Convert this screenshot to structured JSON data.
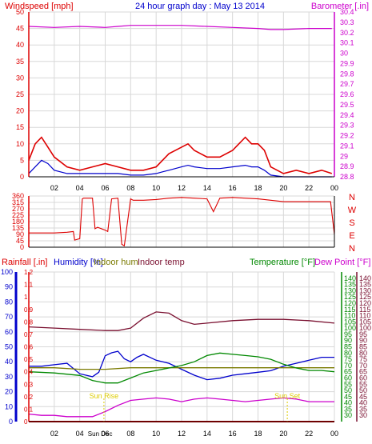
{
  "colors": {
    "red": "#dd0000",
    "blue": "#0000cc",
    "magenta": "#cc00cc",
    "green": "#008800",
    "maroon": "#7a1030",
    "olive": "#7a7a00",
    "gold": "#ddcc00",
    "grid": "#d8d8d8"
  },
  "chart_data": [
    {
      "type": "line",
      "title": "24 hour graph day : May 13 2014",
      "ylabel_left": "Windspeed [mph]",
      "ylabel_right": "Barometer [.in]",
      "x_ticks": [
        "02",
        "04",
        "06",
        "08",
        "10",
        "12",
        "14",
        "16",
        "18",
        "20",
        "22",
        "00"
      ],
      "x_range_hours": [
        0,
        24
      ],
      "y_left": {
        "min": 0,
        "max": 50,
        "ticks": [
          0,
          5,
          10,
          15,
          20,
          25,
          30,
          35,
          40,
          45,
          50
        ]
      },
      "y_right": {
        "min": 28.8,
        "max": 30.4,
        "ticks": [
          28.8,
          28.9,
          29.0,
          29.1,
          29.2,
          29.3,
          29.4,
          29.5,
          29.6,
          29.7,
          29.8,
          29.9,
          30.0,
          30.1,
          30.2,
          30.3,
          30.4
        ],
        "tick_labels": [
          "28.8",
          "28.9",
          "29",
          "29.1",
          "29.2",
          "29.3",
          "29.4",
          "29.5",
          "29.6",
          "29.7",
          "29.8",
          "29.9",
          "30",
          "30.1",
          "30.2",
          "30.3",
          "30.4"
        ]
      },
      "series": [
        {
          "name": "Barometer",
          "axis": "right",
          "color": "#cc00cc",
          "x": [
            0,
            2,
            4,
            6,
            7,
            8,
            10,
            12,
            14,
            16,
            18,
            19,
            20,
            22,
            23.8
          ],
          "y": [
            30.26,
            30.25,
            30.26,
            30.25,
            30.26,
            30.27,
            30.27,
            30.27,
            30.26,
            30.25,
            30.24,
            30.23,
            30.23,
            30.24,
            30.24
          ]
        },
        {
          "name": "Windspeed gust",
          "axis": "left",
          "color": "#dd0000",
          "x": [
            0,
            0.5,
            1,
            1.5,
            2,
            3,
            4,
            5,
            6,
            7,
            8,
            9,
            10,
            10.5,
            11,
            12,
            12.5,
            13,
            13.5,
            14,
            15,
            16,
            16.5,
            17,
            17.5,
            18,
            18.5,
            19,
            20,
            21,
            22,
            23,
            23.8
          ],
          "y": [
            5,
            10,
            12,
            9,
            6,
            3,
            2,
            3,
            4,
            3,
            2,
            2,
            3,
            5,
            7,
            9,
            10,
            8,
            7,
            6,
            6,
            8,
            10,
            12,
            10,
            10,
            8,
            3,
            1,
            2,
            1,
            2,
            1
          ]
        },
        {
          "name": "Windspeed",
          "axis": "left",
          "color": "#0000cc",
          "x": [
            0,
            0.5,
            1,
            1.5,
            2,
            3,
            4,
            5,
            6,
            7,
            8,
            9,
            10,
            10.5,
            11,
            12,
            12.5,
            13,
            14,
            15,
            16,
            17,
            17.5,
            18,
            18.5,
            19,
            20,
            22,
            23.8
          ],
          "y": [
            1,
            3,
            5,
            4,
            2,
            1,
            1,
            1,
            1,
            1,
            0.5,
            0.5,
            1,
            1.5,
            2,
            3,
            3.5,
            3,
            2.5,
            2.5,
            3,
            3.5,
            3,
            3,
            2,
            0.5,
            0,
            0,
            0
          ]
        }
      ]
    },
    {
      "type": "line",
      "ylabel_left": "",
      "y_left": {
        "min": 0,
        "max": 360,
        "ticks": [
          0,
          45,
          90,
          135,
          180,
          225,
          270,
          315,
          360
        ]
      },
      "y_right_labels": [
        "N",
        "W",
        "S",
        "E",
        "N"
      ],
      "series": [
        {
          "name": "Wind direction",
          "color": "#dd0000",
          "x": [
            0,
            1,
            2,
            3,
            3.5,
            3.6,
            4,
            4.2,
            4.3,
            5,
            5.2,
            5.4,
            6,
            6.2,
            6.5,
            7,
            7.3,
            7.5,
            8,
            8.2,
            9,
            10,
            11,
            12,
            13,
            14,
            14.5,
            15,
            16,
            17,
            18,
            19,
            20,
            22,
            23.7,
            24
          ],
          "y": [
            100,
            100,
            100,
            105,
            110,
            50,
            60,
            340,
            345,
            345,
            130,
            140,
            120,
            110,
            340,
            345,
            20,
            10,
            340,
            330,
            330,
            335,
            345,
            350,
            345,
            340,
            250,
            345,
            350,
            345,
            340,
            330,
            320,
            320,
            320,
            90
          ]
        }
      ]
    },
    {
      "type": "line",
      "legend": [
        "Rainfall [.in]",
        "Humidity [%]",
        "Indoor hum",
        "Indoor temp",
        "Temperature [°F]",
        "Dew Point [°F]"
      ],
      "y_rain": {
        "min": 0,
        "max": 1.2,
        "ticks": [
          0,
          0.1,
          0.2,
          0.3,
          0.4,
          0.5,
          0.6,
          0.7,
          0.8,
          0.9,
          1.0,
          1.1,
          1.2
        ],
        "tick_labels": [
          "0",
          "0.1",
          "0.2",
          "0.3",
          "0.4",
          "0.5",
          "0.6",
          "0.7",
          "0.8",
          "0.9",
          "1",
          "1.1",
          "1.2"
        ]
      },
      "y_humidity": {
        "min": 0,
        "max": 100,
        "ticks": [
          0,
          10,
          20,
          30,
          40,
          50,
          60,
          70,
          80,
          90,
          100
        ]
      },
      "y_temp": {
        "min": 25,
        "max": 145,
        "ticks": [
          30,
          35,
          40,
          45,
          50,
          55,
          60,
          65,
          70,
          75,
          80,
          85,
          90,
          95,
          100,
          105,
          110,
          115,
          120,
          125,
          130,
          135,
          140
        ]
      },
      "annotations": [
        {
          "text": "Sun Rise",
          "x": 5.9,
          "color": "#ddcc00"
        },
        {
          "text": "Sun Set",
          "x": 20.3,
          "color": "#ddcc00"
        },
        {
          "text": "Sun Dec",
          "x": 5.6,
          "color": "#000000"
        }
      ],
      "series": [
        {
          "name": "Rainfall [.in]",
          "axis": "rain",
          "color": "#dd0000",
          "x": [
            0,
            24
          ],
          "y": [
            0,
            0
          ]
        },
        {
          "name": "Humidity [%]",
          "axis": "humidity",
          "color": "#0000cc",
          "x": [
            0,
            1,
            2,
            3,
            4,
            5,
            5.5,
            6,
            6.5,
            7,
            7.5,
            8,
            8.5,
            9,
            10,
            11,
            12,
            13,
            14,
            15,
            16,
            17,
            18,
            19,
            20,
            21,
            22,
            23,
            24
          ],
          "y": [
            37,
            37,
            38,
            39,
            32,
            30,
            33,
            44,
            46,
            47,
            42,
            40,
            43,
            45,
            41,
            39,
            35,
            31,
            28,
            29,
            31,
            32,
            33,
            34,
            37,
            39,
            41,
            43,
            43
          ]
        },
        {
          "name": "Indoor hum",
          "axis": "humidity",
          "color": "#7a7a00",
          "x": [
            0,
            2,
            4,
            6,
            8,
            10,
            12,
            14,
            16,
            18,
            20,
            22,
            24
          ],
          "y": [
            36,
            36,
            35,
            35,
            36,
            36,
            36,
            36,
            36,
            36,
            36,
            36,
            36
          ]
        },
        {
          "name": "Indoor temp",
          "axis": "temp",
          "color": "#7a1030",
          "x": [
            0,
            2,
            4,
            6,
            7,
            8,
            9,
            10,
            11,
            12,
            13,
            14,
            16,
            18,
            20,
            22,
            24
          ],
          "y": [
            101,
            100,
            99,
            98,
            98,
            100,
            108,
            113,
            112,
            106,
            103,
            104,
            106,
            107,
            107,
            106,
            104
          ]
        },
        {
          "name": "Temperature [°F]",
          "axis": "temp",
          "color": "#008800",
          "x": [
            0,
            2,
            4,
            5,
            6,
            7,
            8,
            9,
            10,
            11,
            12,
            13,
            14,
            15,
            16,
            17,
            18,
            19,
            20,
            21,
            22,
            23,
            24
          ],
          "y": [
            65,
            64,
            62,
            58,
            56,
            56,
            60,
            64,
            66,
            68,
            70,
            73,
            78,
            80,
            79,
            78,
            77,
            75,
            71,
            68,
            66,
            66,
            65
          ]
        },
        {
          "name": "Dew Point [°F]",
          "axis": "temp",
          "color": "#cc00cc",
          "x": [
            0,
            1,
            2,
            3,
            4,
            5,
            6,
            7,
            8,
            9,
            10,
            11,
            12,
            13,
            14,
            15,
            16,
            17,
            18,
            19,
            20,
            21,
            22,
            23,
            24
          ],
          "y": [
            31,
            30,
            30,
            29,
            29,
            29,
            33,
            38,
            42,
            43,
            44,
            43,
            41,
            43,
            44,
            43,
            42,
            41,
            42,
            43,
            44,
            43,
            41,
            41,
            41
          ]
        }
      ]
    }
  ]
}
